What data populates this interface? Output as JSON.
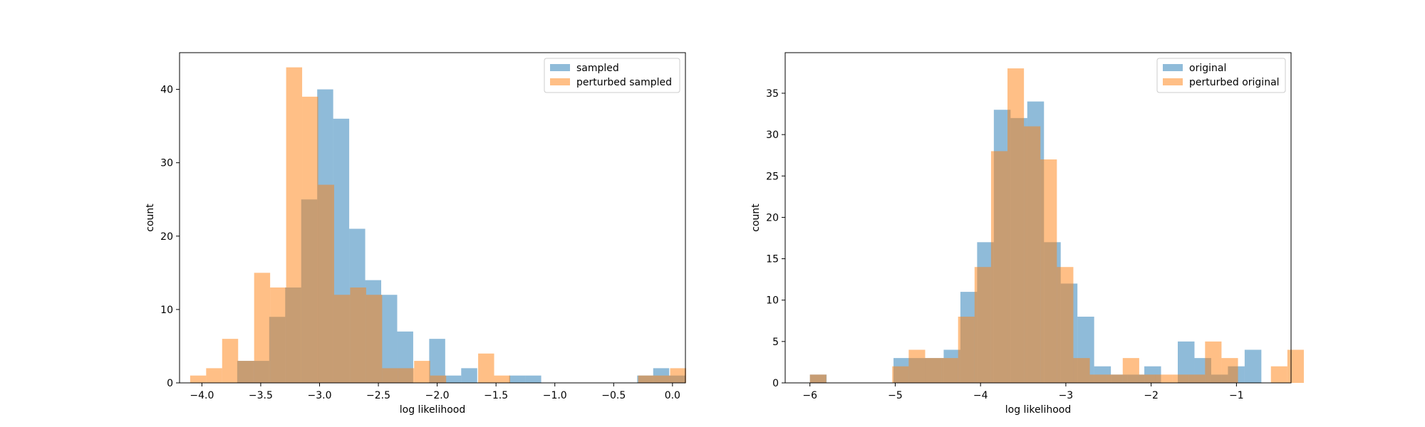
{
  "chart_data": [
    {
      "type": "histogram",
      "xlabel": "log likelihood",
      "ylabel": "count",
      "xlim": [
        -4.19,
        0.11
      ],
      "ylim": [
        0,
        45
      ],
      "xticks": [
        -4.0,
        -3.5,
        -3.0,
        -2.5,
        -2.0,
        -1.5,
        -1.0,
        -0.5,
        0.0
      ],
      "xtick_labels": [
        "−4.0",
        "−3.5",
        "−3.0",
        "−2.5",
        "−2.0",
        "−1.5",
        "−1.0",
        "−0.5",
        "0.0"
      ],
      "yticks": [
        0,
        10,
        20,
        30,
        40
      ],
      "ytick_labels": [
        "0",
        "10",
        "20",
        "30",
        "40"
      ],
      "legend_position": "upper-right",
      "series": [
        {
          "name": "sampled",
          "color": "#1f77b4",
          "opacity": 0.5,
          "bin_start": -3.7,
          "bin_width": 0.136,
          "counts": [
            3,
            3,
            9,
            13,
            25,
            40,
            36,
            21,
            14,
            12,
            7,
            0,
            6,
            1,
            2,
            0,
            0,
            1,
            1,
            0,
            0,
            0,
            0,
            0,
            0,
            1,
            2,
            1
          ]
        },
        {
          "name": "perturbed sampled",
          "color": "#ff7f0e",
          "opacity": 0.5,
          "bin_start": -4.1,
          "bin_width": 0.136,
          "counts": [
            1,
            2,
            6,
            3,
            15,
            13,
            43,
            39,
            27,
            12,
            13,
            12,
            2,
            2,
            3,
            1,
            0,
            0,
            4,
            1,
            0,
            0,
            0,
            0,
            0,
            0,
            0,
            0,
            1,
            1,
            2
          ]
        }
      ]
    },
    {
      "type": "histogram",
      "xlabel": "log likelihood",
      "ylabel": "count",
      "xlim": [
        -6.29,
        -0.36
      ],
      "ylim": [
        0,
        39.9
      ],
      "xticks": [
        -6,
        -5,
        -4,
        -3,
        -2,
        -1
      ],
      "xtick_labels": [
        "−6",
        "−5",
        "−4",
        "−3",
        "−2",
        "−1"
      ],
      "yticks": [
        0,
        5,
        10,
        15,
        20,
        25,
        30,
        35
      ],
      "ytick_labels": [
        "0",
        "5",
        "10",
        "15",
        "20",
        "25",
        "30",
        "35"
      ],
      "legend_position": "upper-right",
      "series": [
        {
          "name": "original",
          "color": "#1f77b4",
          "opacity": 0.5,
          "bin_start": -6.0,
          "bin_width": 0.196,
          "counts": [
            1,
            0,
            0,
            0,
            0,
            3,
            3,
            3,
            4,
            11,
            17,
            33,
            32,
            34,
            17,
            12,
            8,
            2,
            1,
            1,
            2,
            0,
            5,
            3,
            1,
            2,
            4
          ]
        },
        {
          "name": "perturbed original",
          "color": "#ff7f0e",
          "opacity": 0.5,
          "bin_start": -6.0,
          "bin_width": 0.193,
          "counts": [
            1,
            0,
            0,
            0,
            0,
            2,
            4,
            3,
            3,
            8,
            14,
            28,
            38,
            31,
            27,
            14,
            3,
            1,
            1,
            3,
            1,
            1,
            1,
            1,
            5,
            3,
            0,
            0,
            2,
            4
          ]
        }
      ]
    }
  ]
}
